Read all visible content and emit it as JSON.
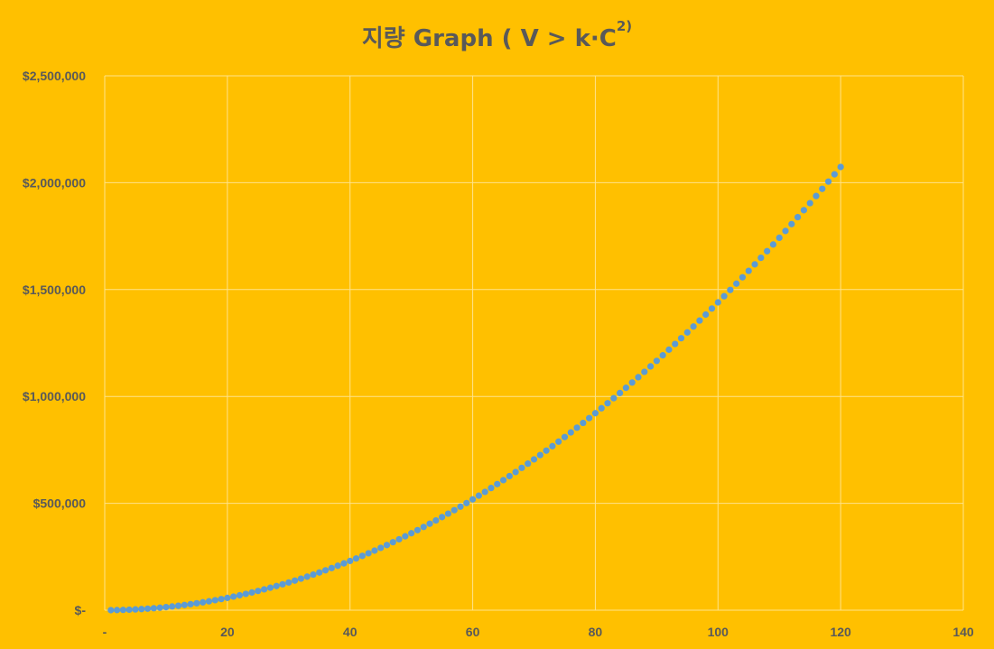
{
  "chart_data": {
    "type": "scatter",
    "title": {
      "main": "지량 Graph ( V > k·C",
      "superscript": "2)"
    },
    "xlabel": "",
    "ylabel": "",
    "xlim": [
      0,
      140
    ],
    "ylim": [
      0,
      2500000
    ],
    "x_ticks": [
      0,
      20,
      40,
      60,
      80,
      100,
      120,
      140
    ],
    "x_tick_labels": [
      "-",
      "20",
      "40",
      "60",
      "80",
      "100",
      "120",
      "140"
    ],
    "y_ticks": [
      0,
      500000,
      1000000,
      1500000,
      2000000,
      2500000
    ],
    "y_tick_labels": [
      "$-",
      "$500,000",
      "$1,000,000",
      "$1,500,000",
      "$2,000,000",
      "$2,500,000"
    ],
    "grid": true,
    "legend": "none",
    "series": [
      {
        "x_start": 1,
        "x_end": 120,
        "x_step": 1,
        "formula": "y = 144 * x^2",
        "values_sample": {
          "20": 57600,
          "40": 230400,
          "60": 518400,
          "80": 921600,
          "100": 1440000,
          "120": 2073600
        }
      }
    ],
    "colors": {
      "background": "#FFC000",
      "gridline": "#FFE38A",
      "marker": "#5B9BD5",
      "text": "#595959"
    }
  }
}
